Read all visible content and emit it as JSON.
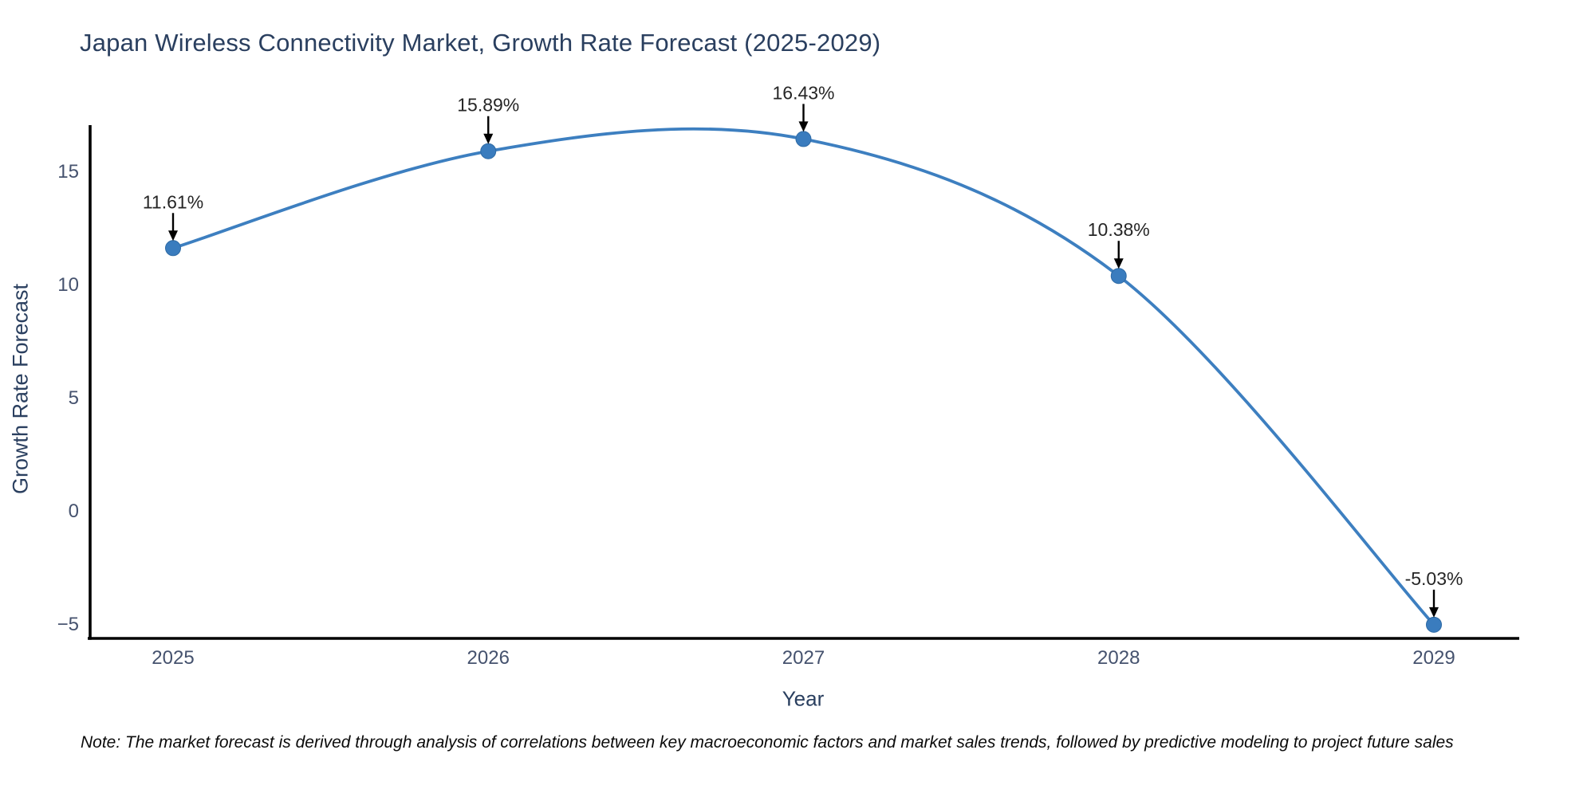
{
  "title": "Japan Wireless Connectivity Market, Growth Rate Forecast (2025-2029)",
  "note": "Note: The market forecast is derived through analysis of correlations between key macroeconomic factors and market sales trends, followed by predictive modeling to project future sales",
  "chart_data": {
    "type": "line",
    "title": "Japan Wireless Connectivity Market, Growth Rate Forecast (2025-2029)",
    "xlabel": "Year",
    "ylabel": "Growth Rate Forecast",
    "x": [
      2025,
      2026,
      2027,
      2028,
      2029
    ],
    "values": [
      11.61,
      15.89,
      16.43,
      10.38,
      -5.03
    ],
    "point_labels": [
      "11.61%",
      "15.89%",
      "16.43%",
      "10.38%",
      "-5.03%"
    ],
    "yticks": [
      15,
      10,
      5,
      0,
      -5
    ],
    "ylim": [
      -5.65,
      17.05
    ],
    "line_shape": "spline",
    "grid": false,
    "legend": false,
    "annotations_have_arrows": true,
    "colors": {
      "line": "#3d7fc0",
      "marker": "#3a7cbe",
      "marker_edge": "#2e6aa5",
      "axis_line": "#000000",
      "arrow": "#000000",
      "title_text": "#2a3f5f",
      "axis_title_text": "#2a3f5f",
      "tick_text": "#45526e",
      "annotation_text": "#262626",
      "background": "#ffffff"
    }
  }
}
